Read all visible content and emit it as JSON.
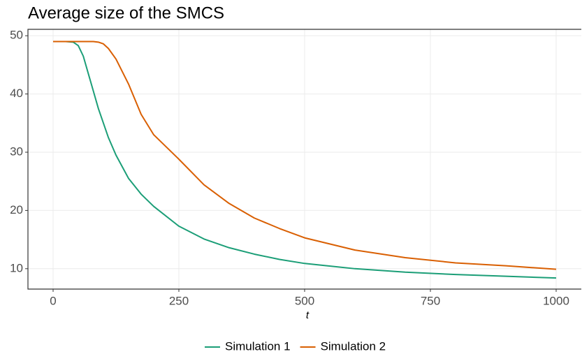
{
  "chart_data": {
    "type": "line",
    "title": "Average size of the SMCS",
    "x_label": "t",
    "x": [
      0,
      25,
      40,
      50,
      60,
      75,
      80,
      90,
      100,
      110,
      125,
      150,
      175,
      200,
      250,
      300,
      350,
      400,
      450,
      500,
      600,
      700,
      800,
      900,
      1000
    ],
    "series": [
      {
        "name": "Simulation 1",
        "color": "#1b9e77",
        "values": [
          49,
          49,
          48.9,
          48.3,
          46.5,
          42,
          40.5,
          37.5,
          35,
          32.5,
          29.5,
          25.5,
          22.8,
          20.7,
          17.3,
          15.1,
          13.6,
          12.5,
          11.6,
          10.9,
          10.0,
          9.4,
          9.0,
          8.7,
          8.4
        ]
      },
      {
        "name": "Simulation 2",
        "color": "#d95f02",
        "values": [
          49,
          49,
          49,
          49,
          49,
          49,
          49,
          48.9,
          48.6,
          47.8,
          46,
          41.7,
          36.5,
          33,
          28.8,
          24.4,
          21.2,
          18.7,
          16.9,
          15.3,
          13.2,
          11.9,
          11.0,
          10.5,
          9.9
        ]
      }
    ],
    "xlim": [
      -50,
      1050
    ],
    "ylim": [
      6.5,
      51.1
    ],
    "xticks": [
      0,
      250,
      500,
      750,
      1000
    ],
    "yticks": [
      10,
      20,
      30,
      40,
      50
    ],
    "grid": true,
    "legend": "bottom"
  }
}
